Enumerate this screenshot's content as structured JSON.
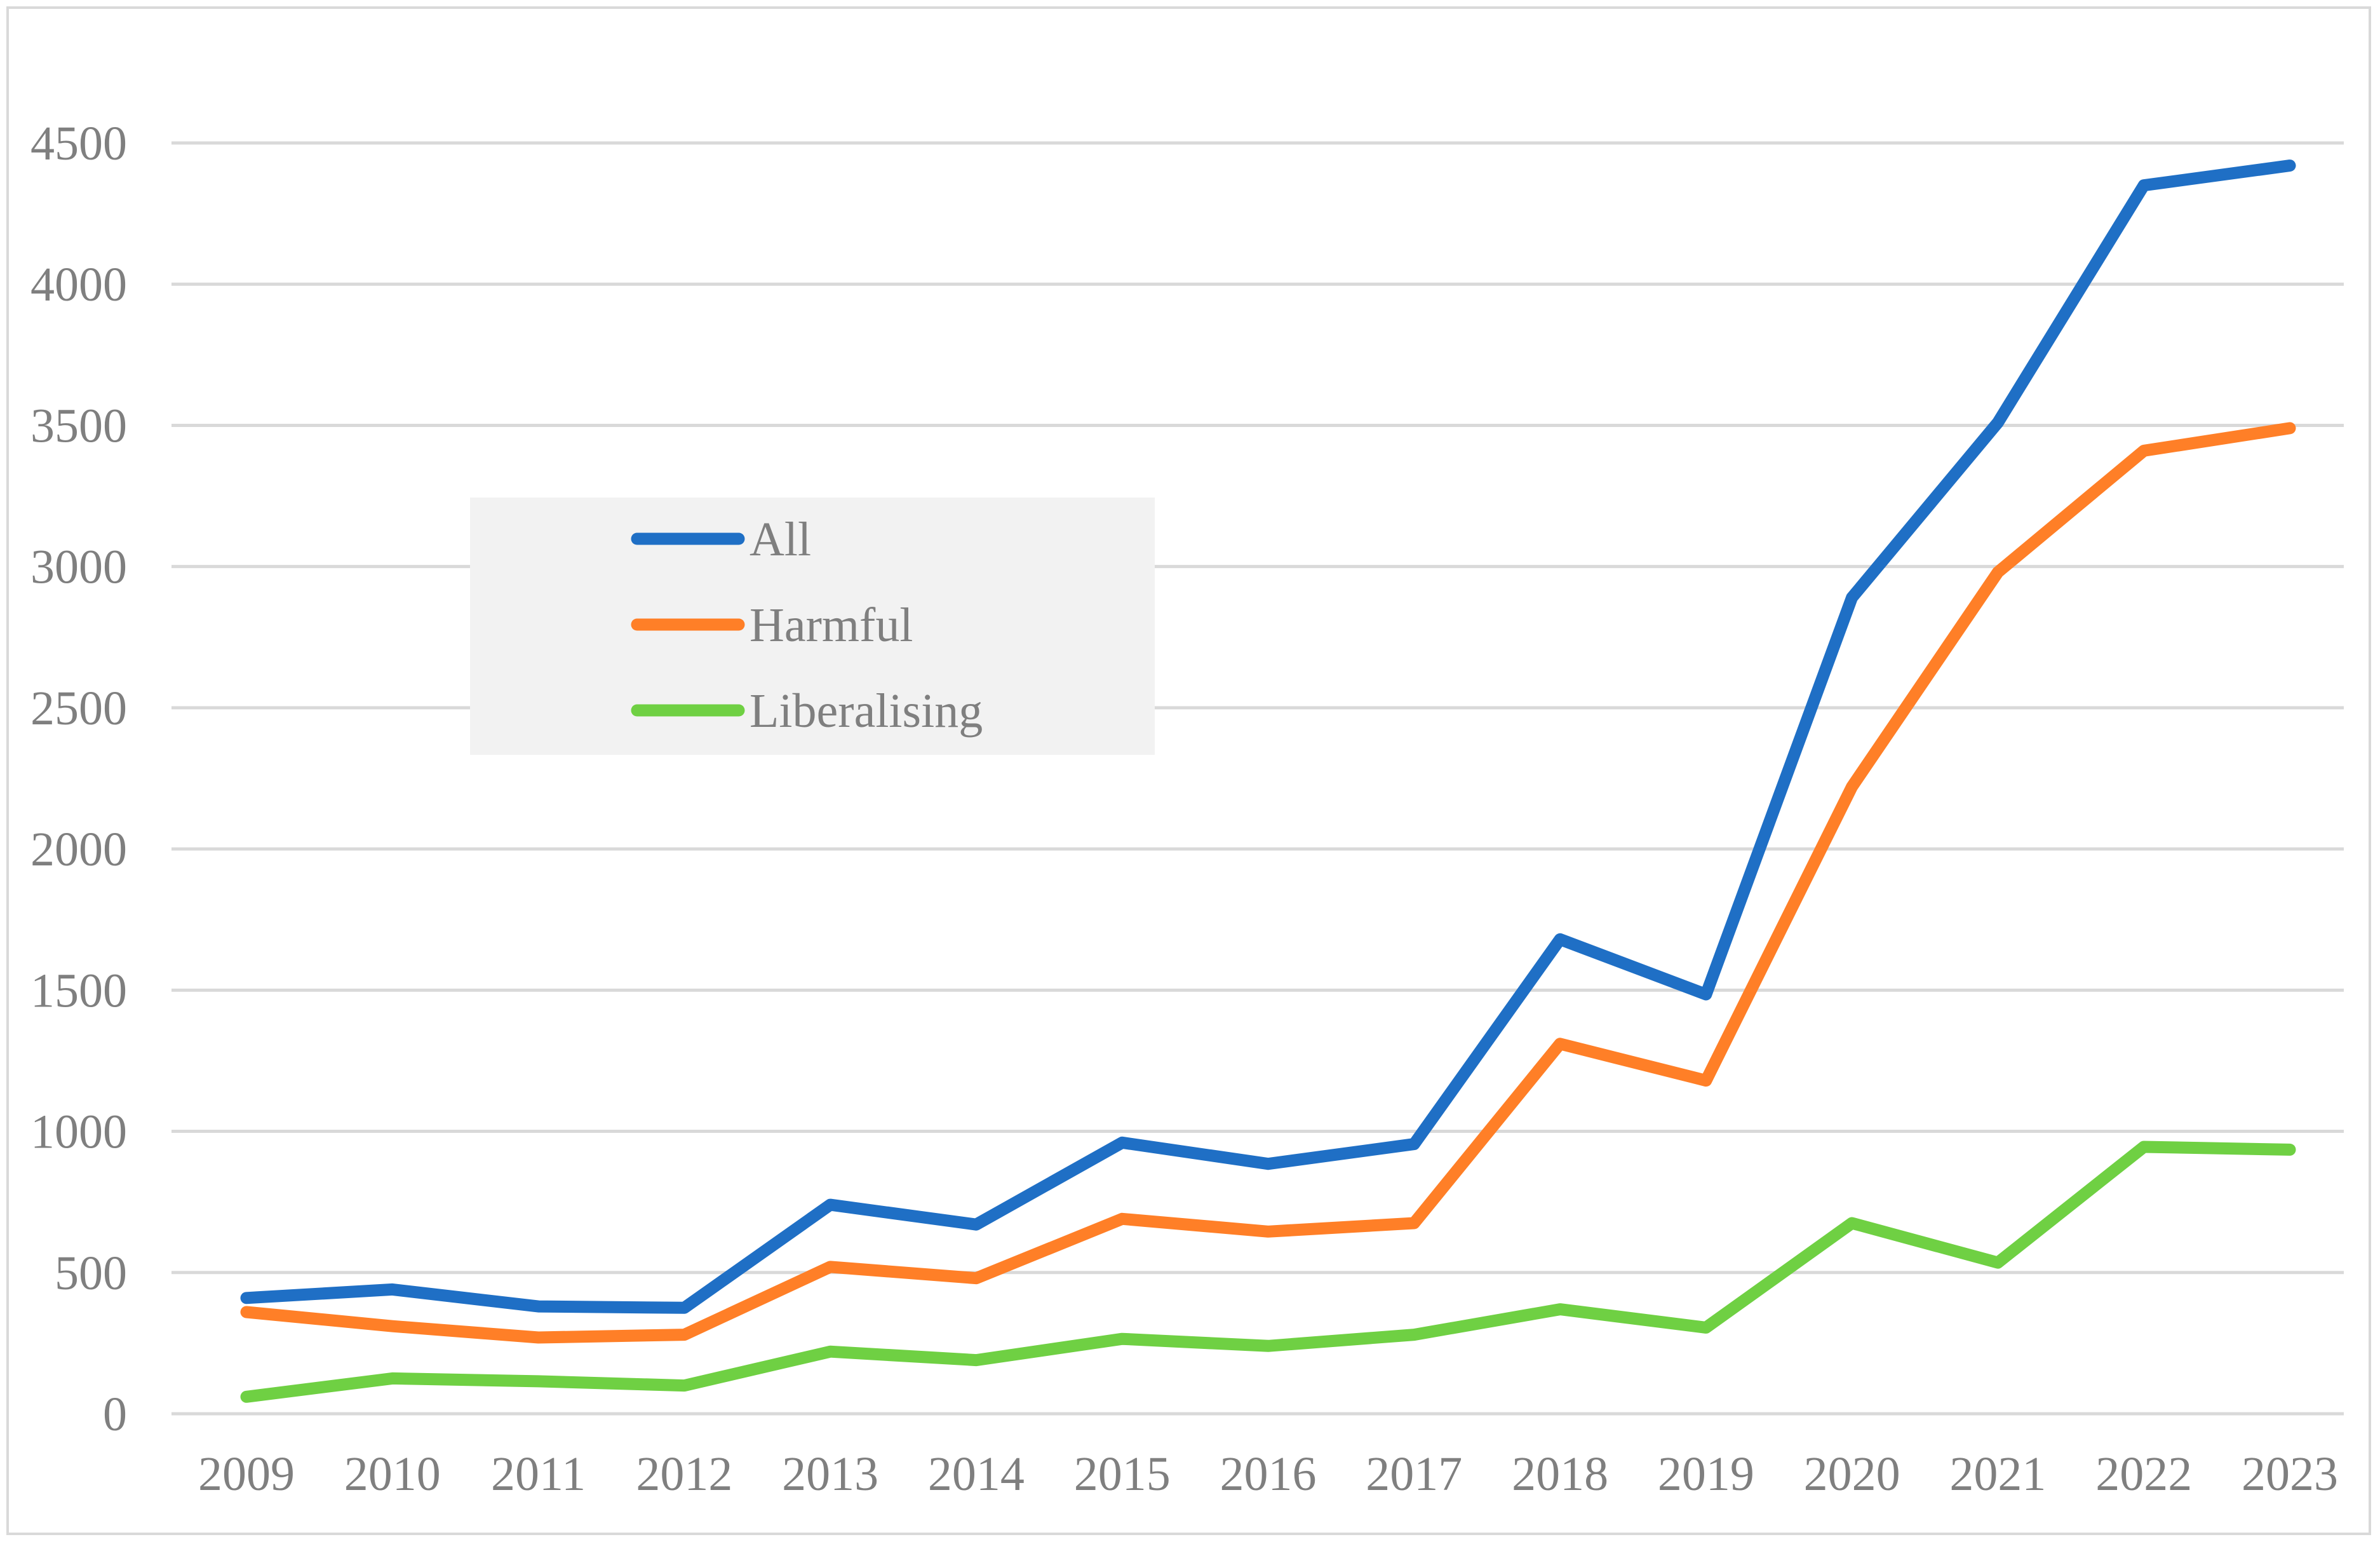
{
  "chart_data": {
    "type": "line",
    "title": "",
    "xlabel": "",
    "ylabel": "",
    "categories": [
      "2009",
      "2010",
      "2011",
      "2012",
      "2013",
      "2014",
      "2015",
      "2016",
      "2017",
      "2018",
      "2019",
      "2020",
      "2021",
      "2022",
      "2023"
    ],
    "y_ticks": [
      "0",
      "500",
      "1000",
      "1500",
      "2000",
      "2500",
      "3000",
      "3500",
      "4000",
      "4500"
    ],
    "ylim": [
      0,
      4500
    ],
    "grid": "horizontal",
    "legend_position": "upper-left",
    "series": [
      {
        "name": "All",
        "color": "#1f6fc5",
        "values": [
          410,
          440,
          380,
          375,
          740,
          670,
          960,
          885,
          955,
          1680,
          1485,
          2890,
          3510,
          4350,
          4420
        ]
      },
      {
        "name": "Harmful",
        "color": "#ff7f27",
        "values": [
          360,
          310,
          270,
          280,
          520,
          480,
          690,
          645,
          675,
          1310,
          1180,
          2220,
          2980,
          3410,
          3490
        ]
      },
      {
        "name": "Liberalising",
        "color": "#6fd043",
        "values": [
          60,
          125,
          115,
          100,
          220,
          190,
          265,
          240,
          280,
          370,
          305,
          675,
          535,
          945,
          935
        ]
      }
    ]
  }
}
